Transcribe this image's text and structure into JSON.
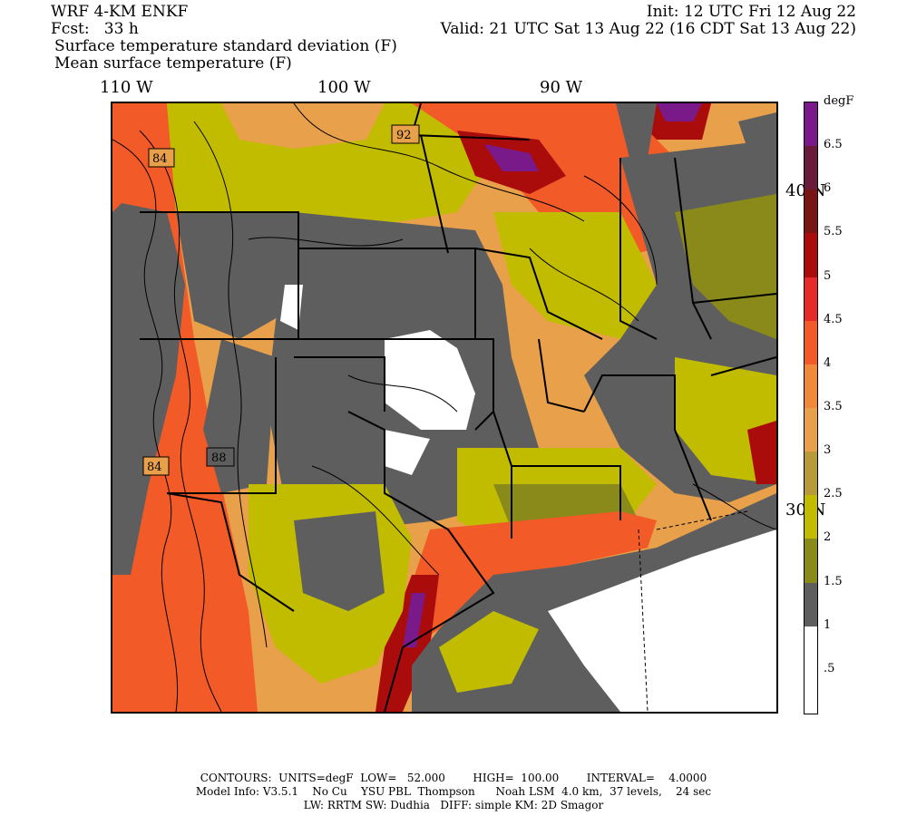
{
  "header": {
    "model": "WRF 4-KM ENKF",
    "fcst": "Fcst:   33 h",
    "init": "Init: 12 UTC Fri 12 Aug 22",
    "valid": "Valid: 21 UTC Sat 13 Aug 22 (16 CDT Sat 13 Aug 22)",
    "field1": "Surface temperature standard deviation (F)",
    "field2": "Mean surface temperature (F)"
  },
  "axes": {
    "lon_labels": [
      "110 W",
      "100 W",
      "90 W"
    ],
    "lat_labels": [
      "40 N",
      "30 N"
    ]
  },
  "contour_labels": [
    "92",
    "84",
    "84",
    "88"
  ],
  "colorbar": {
    "unit": "degF",
    "labels": [
      "6.5",
      "6",
      "5.5",
      "5",
      "4.5",
      "4",
      "3.5",
      "3",
      "2.5",
      "2",
      "1.5",
      "1",
      ".5"
    ],
    "colors": [
      "#7a1a8a",
      "#6a1a3a",
      "#7a1515",
      "#aa0c0c",
      "#e62a2a",
      "#f25a28",
      "#f08a3a",
      "#e8a04a",
      "#b89a3a",
      "#c2bc00",
      "#8a8a1a",
      "#5e5e5e",
      "#ffffff",
      "#ffffff"
    ]
  },
  "footer": {
    "line1": "CONTOURS:  UNITS=degF  LOW=   52.000        HIGH=  100.00        INTERVAL=    4.0000",
    "line2": "Model Info: V3.5.1    No Cu    YSU PBL  Thompson      Noah LSM  4.0 km,  37 levels,    24 sec",
    "line3": "LW: RRTM SW: Dudhia   DIFF: simple KM: 2D Smagor"
  }
}
